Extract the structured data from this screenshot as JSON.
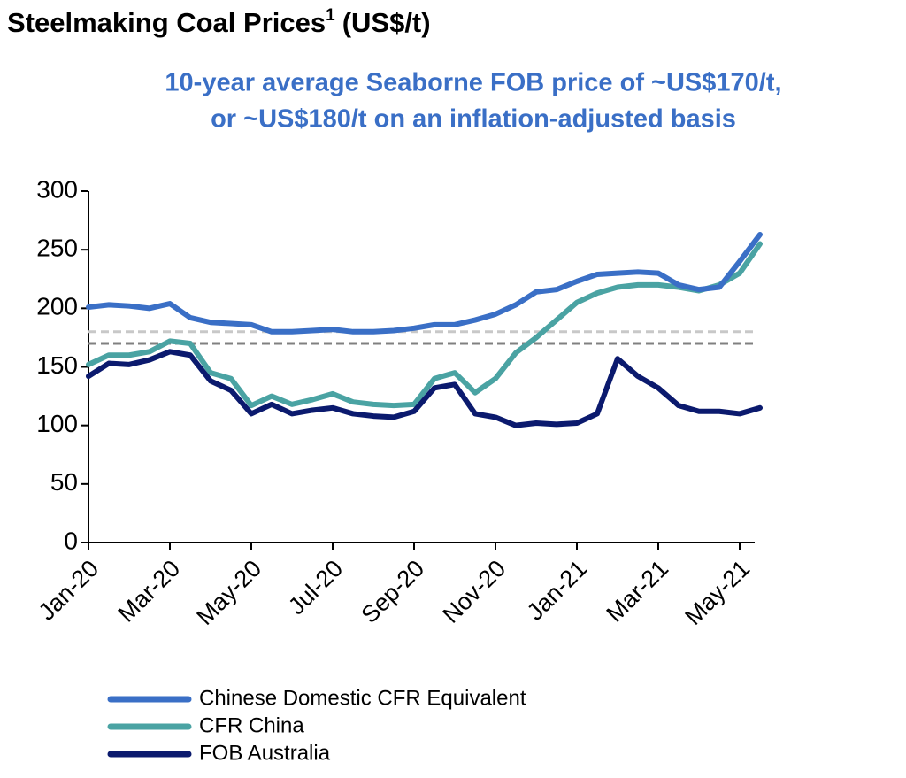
{
  "chart_data": {
    "type": "line",
    "title": "Steelmaking Coal Prices",
    "title_superscript": "1",
    "title_unit": "(US$/t)",
    "subtitle": [
      "10-year average Seaborne FOB price of  ~US$170/t,",
      "or ~US$180/t on an inflation-adjusted basis"
    ],
    "categories": [
      "Jan-20",
      null,
      null,
      null,
      "Mar-20",
      null,
      null,
      null,
      "May-20",
      null,
      null,
      null,
      "Jul-20",
      null,
      null,
      null,
      "Sep-20",
      null,
      null,
      null,
      "Nov-20",
      null,
      null,
      null,
      "Jan-21",
      null,
      null,
      null,
      "Mar-21",
      null,
      null,
      null,
      "May-21",
      null
    ],
    "series": [
      {
        "name": "Chinese Domestic CFR Equivalent",
        "color": "#3a6fc6",
        "values": [
          201,
          203,
          202,
          200,
          204,
          192,
          188,
          187,
          186,
          180,
          180,
          181,
          182,
          180,
          180,
          181,
          183,
          186,
          186,
          190,
          195,
          203,
          214,
          216,
          223,
          229,
          230,
          231,
          230,
          220,
          216,
          218,
          240,
          263
        ]
      },
      {
        "name": "CFR China",
        "color": "#4aa3a3",
        "values": [
          152,
          160,
          160,
          163,
          172,
          170,
          145,
          140,
          117,
          125,
          118,
          122,
          127,
          120,
          118,
          117,
          118,
          140,
          145,
          128,
          140,
          162,
          175,
          190,
          205,
          213,
          218,
          220,
          220,
          218,
          215,
          220,
          230,
          255
        ]
      },
      {
        "name": "FOB Australia",
        "color": "#0b1a6e",
        "values": [
          142,
          153,
          152,
          156,
          163,
          160,
          138,
          130,
          110,
          118,
          110,
          113,
          115,
          110,
          108,
          107,
          112,
          132,
          135,
          110,
          107,
          100,
          102,
          101,
          102,
          110,
          157,
          142,
          132,
          117,
          112,
          112,
          110,
          115
        ]
      }
    ],
    "reference_lines": [
      {
        "value": 170,
        "color": "#808080"
      },
      {
        "value": 180,
        "color": "#c8c8c8"
      }
    ],
    "ylim": [
      0,
      300
    ],
    "yticks": [
      0,
      50,
      100,
      150,
      200,
      250,
      300
    ]
  }
}
